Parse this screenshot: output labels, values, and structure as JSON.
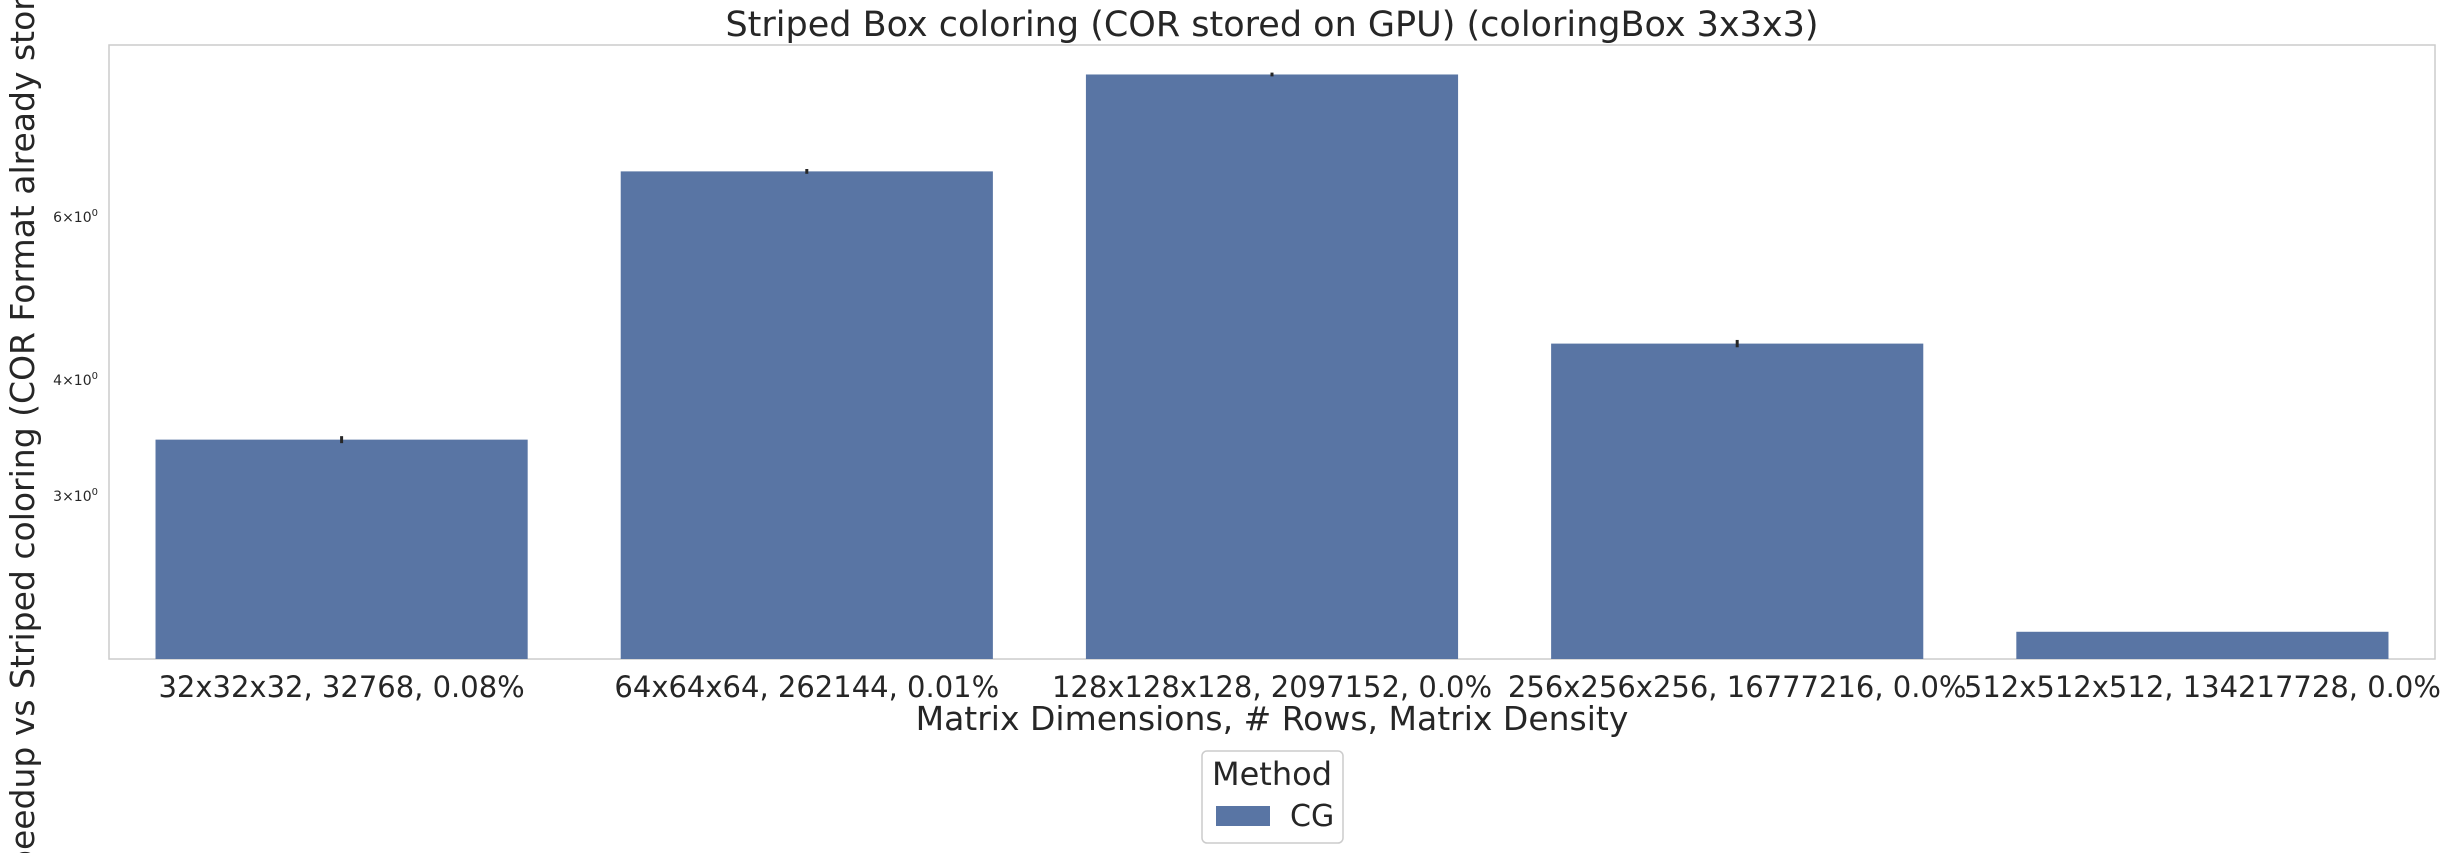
{
  "chart_data": {
    "type": "bar",
    "title": "Striped Box coloring (COR stored on GPU) (coloringBox 3x3x3)",
    "xlabel": "Matrix Dimensions, # Rows, Matrix Density",
    "ylabel": "Speedup vs Striped coloring (COR Format already stored on GPU)",
    "yscale": "log",
    "ylim": [
      2.0,
      9.2
    ],
    "yticks": [
      {
        "value": 3,
        "base": "3",
        "exp": "0"
      },
      {
        "value": 4,
        "base": "4",
        "exp": "0"
      },
      {
        "value": 6,
        "base": "6",
        "exp": "0"
      }
    ],
    "categories": [
      "32x32x32, 32768, 0.08%",
      "64x64x64, 262144, 0.01%",
      "128x128x128, 2097152, 0.0%",
      "256x256x256, 16777216, 0.0%",
      "512x512x512, 134217728, 0.0%"
    ],
    "series": [
      {
        "name": "CG",
        "values": [
          3.45,
          6.72,
          8.55,
          4.38,
          2.14
        ],
        "errors": [
          0.03,
          0.04,
          0.04,
          0.04,
          0.0
        ]
      }
    ],
    "grid": false,
    "legend": {
      "title": "Method",
      "placement": "bottom-center"
    },
    "colors": {
      "bar": "#5975a4",
      "frame": "#cccccc",
      "errorbar": "#262626"
    }
  }
}
